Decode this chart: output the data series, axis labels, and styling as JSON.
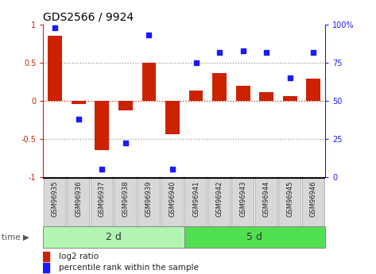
{
  "title": "GDS2566 / 9924",
  "samples": [
    "GSM96935",
    "GSM96936",
    "GSM96937",
    "GSM96938",
    "GSM96939",
    "GSM96940",
    "GSM96941",
    "GSM96942",
    "GSM96943",
    "GSM96944",
    "GSM96945",
    "GSM96946"
  ],
  "log2_ratio": [
    0.85,
    -0.04,
    -0.65,
    -0.13,
    0.5,
    -0.44,
    0.13,
    0.36,
    0.2,
    0.11,
    0.06,
    0.29
  ],
  "percentile_rank": [
    98,
    38,
    5,
    22,
    93,
    5,
    75,
    82,
    83,
    82,
    65,
    82
  ],
  "groups": [
    {
      "label": "2 d",
      "start": 0,
      "end": 6
    },
    {
      "label": "5 d",
      "start": 6,
      "end": 12
    }
  ],
  "group_colors": [
    "#b2f5b2",
    "#50e050"
  ],
  "bar_color": "#cc2200",
  "dot_color": "#1a1aff",
  "ylim": [
    -1.0,
    1.0
  ],
  "y2lim": [
    0,
    100
  ],
  "yticks": [
    -1,
    -0.5,
    0,
    0.5,
    1
  ],
  "y2ticks": [
    0,
    25,
    50,
    75,
    100
  ],
  "legend_bar_label": "log2 ratio",
  "legend_dot_label": "percentile rank within the sample",
  "title_fontsize": 10,
  "tick_fontsize": 7,
  "sample_fontsize": 6,
  "group_fontsize": 9,
  "legend_fontsize": 7.5
}
